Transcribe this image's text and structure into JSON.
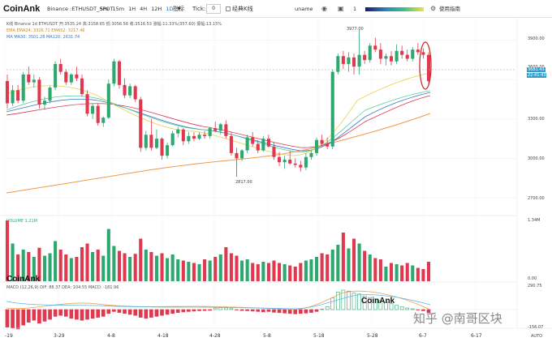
{
  "toolbar": {
    "logo": "CoinAnk",
    "symbol": "Binance :ETHUSDT_SPOT",
    "intervals": [
      "5m",
      "15m",
      "1H",
      "4H",
      "12H",
      "1D"
    ],
    "active_interval": "1D",
    "indicators_label": "指标",
    "tick_label": "Tick:",
    "tick_value": "0",
    "classic_kline_label": "经典K线",
    "username": "uname",
    "page_count": "1",
    "guide_label": "使用指南",
    "colors": {
      "active": "#2b6fd6",
      "bull": "#2da86e",
      "bear": "#e0384f"
    }
  },
  "legend": {
    "kline": "K线 Binance 1d ETHUSDT 开:3535.24 高:3158.65 低:3056.56 收:3516.53 涨幅:11.33%(357.60) 振幅:13.15%",
    "ema": "EMA   EMA24: 3326.71  EMA52: 3217.46",
    "ma": "MA   MA30: 3501.28  MA120: 2631.74",
    "volume": "VOLUME   1.21M",
    "macd": "MACD   (12,26,9)   DIF: 88.37   DEA: 104.55   MACD: -181.96"
  },
  "price_axis": [
    "3900.00",
    "3600.00",
    "3300.00",
    "3000.00",
    "2700.00"
  ],
  "last_price_tags": [
    "3681.43",
    "22:41:43"
  ],
  "price_annotations": {
    "high": "3977.00",
    "low": "2817.00"
  },
  "volume_axis": [
    "1.34M",
    "0.00"
  ],
  "macd_axis": [
    "290.75",
    "-156.07",
    "AUTO"
  ],
  "date_axis": [
    "-19",
    "3-29",
    "4-8",
    "4-18",
    "4-28",
    "5-8",
    "5-18",
    "5-28",
    "6-7",
    "6-17"
  ],
  "watermark_main": "CoinAnk",
  "watermark_macd": "CoinAnk",
  "zhihu_watermark": "知乎 @南哥区块",
  "chart_data": {
    "type": "candlestick",
    "symbol": "ETHUSDT",
    "interval": "1D",
    "ylim": [
      2600,
      4060
    ],
    "candles": [
      [
        3590,
        3640,
        3380,
        3420
      ],
      [
        3420,
        3560,
        3400,
        3520
      ],
      [
        3520,
        3560,
        3420,
        3440
      ],
      [
        3440,
        3660,
        3420,
        3640
      ],
      [
        3640,
        3700,
        3560,
        3580
      ],
      [
        3580,
        3640,
        3540,
        3600
      ],
      [
        3600,
        3620,
        3380,
        3410
      ],
      [
        3410,
        3470,
        3370,
        3440
      ],
      [
        3440,
        3550,
        3420,
        3540
      ],
      [
        3540,
        3740,
        3520,
        3720
      ],
      [
        3720,
        3760,
        3640,
        3660
      ],
      [
        3660,
        3680,
        3560,
        3580
      ],
      [
        3580,
        3650,
        3560,
        3640
      ],
      [
        3640,
        3700,
        3590,
        3610
      ],
      [
        3610,
        3640,
        3470,
        3490
      ],
      [
        3490,
        3520,
        3320,
        3340
      ],
      [
        3340,
        3420,
        3300,
        3400
      ],
      [
        3400,
        3420,
        3250,
        3270
      ],
      [
        3270,
        3320,
        3240,
        3310
      ],
      [
        3310,
        3600,
        3300,
        3570
      ],
      [
        3570,
        3760,
        3550,
        3740
      ],
      [
        3740,
        3750,
        3530,
        3560
      ],
      [
        3560,
        3610,
        3460,
        3480
      ],
      [
        3480,
        3570,
        3460,
        3550
      ],
      [
        3550,
        3560,
        3430,
        3450
      ],
      [
        3450,
        3470,
        3050,
        3080
      ],
      [
        3080,
        3210,
        3060,
        3180
      ],
      [
        3180,
        3300,
        3060,
        3080
      ],
      [
        3080,
        3220,
        3070,
        3150
      ],
      [
        3150,
        3160,
        2990,
        3020
      ],
      [
        3020,
        3120,
        3000,
        3100
      ],
      [
        3100,
        3210,
        3090,
        3190
      ],
      [
        3190,
        3240,
        3160,
        3220
      ],
      [
        3220,
        3230,
        3100,
        3130
      ],
      [
        3130,
        3200,
        3110,
        3170
      ],
      [
        3170,
        3200,
        3130,
        3150
      ],
      [
        3150,
        3200,
        3140,
        3180
      ],
      [
        3180,
        3210,
        3150,
        3170
      ],
      [
        3170,
        3240,
        3150,
        3230
      ],
      [
        3230,
        3280,
        3200,
        3210
      ],
      [
        3210,
        3270,
        3180,
        3260
      ],
      [
        3260,
        3290,
        3150,
        3170
      ],
      [
        3170,
        3200,
        3020,
        3040
      ],
      [
        3040,
        3080,
        2860,
        3000
      ],
      [
        3000,
        3070,
        2980,
        3060
      ],
      [
        3060,
        3180,
        3040,
        3160
      ],
      [
        3160,
        3200,
        3090,
        3110
      ],
      [
        3110,
        3140,
        3040,
        3060
      ],
      [
        3060,
        3170,
        3050,
        3150
      ],
      [
        3150,
        3180,
        3080,
        3090
      ],
      [
        3090,
        3120,
        2990,
        3010
      ],
      [
        3010,
        3050,
        2940,
        2970
      ],
      [
        2970,
        3020,
        2920,
        2990
      ],
      [
        2990,
        3060,
        2950,
        2960
      ],
      [
        2960,
        3000,
        2930,
        2950
      ],
      [
        2950,
        2980,
        2900,
        2930
      ],
      [
        2930,
        3040,
        2910,
        3010
      ],
      [
        3010,
        3060,
        2990,
        3040
      ],
      [
        3040,
        3160,
        3020,
        3140
      ],
      [
        3140,
        3180,
        3090,
        3110
      ],
      [
        3110,
        3160,
        3070,
        3090
      ],
      [
        3090,
        3680,
        3070,
        3660
      ],
      [
        3660,
        3800,
        3640,
        3780
      ],
      [
        3780,
        3820,
        3680,
        3720
      ],
      [
        3720,
        3810,
        3660,
        3770
      ],
      [
        3770,
        3800,
        3640,
        3700
      ],
      [
        3700,
        3980,
        3640,
        3790
      ],
      [
        3790,
        3820,
        3720,
        3750
      ],
      [
        3750,
        3880,
        3730,
        3860
      ],
      [
        3860,
        3920,
        3810,
        3830
      ],
      [
        3830,
        3880,
        3720,
        3760
      ],
      [
        3760,
        3800,
        3710,
        3780
      ],
      [
        3780,
        3820,
        3710,
        3740
      ],
      [
        3740,
        3870,
        3720,
        3820
      ],
      [
        3820,
        3860,
        3760,
        3790
      ],
      [
        3790,
        3830,
        3740,
        3760
      ],
      [
        3760,
        3850,
        3740,
        3830
      ],
      [
        3830,
        3880,
        3790,
        3810
      ],
      [
        3810,
        3840,
        3760,
        3790
      ],
      [
        3790,
        3810,
        3560,
        3590
      ]
    ],
    "volume_max_label": "1.34M",
    "volume": [
      1.0,
      0.62,
      0.44,
      0.52,
      0.48,
      0.4,
      0.55,
      0.42,
      0.46,
      0.66,
      0.52,
      0.44,
      0.38,
      0.4,
      0.56,
      0.62,
      0.48,
      0.52,
      0.42,
      0.86,
      0.58,
      0.5,
      0.46,
      0.4,
      0.45,
      0.7,
      0.52,
      0.48,
      0.42,
      0.46,
      0.38,
      0.44,
      0.36,
      0.34,
      0.32,
      0.3,
      0.28,
      0.36,
      0.34,
      0.4,
      0.44,
      0.56,
      0.46,
      0.42,
      0.34,
      0.36,
      0.3,
      0.28,
      0.32,
      0.3,
      0.34,
      0.3,
      0.28,
      0.26,
      0.24,
      0.3,
      0.34,
      0.36,
      0.4,
      0.46,
      0.44,
      0.52,
      0.6,
      0.8,
      0.54,
      0.7,
      0.62,
      0.5,
      0.44,
      0.38,
      0.36,
      0.24,
      0.3,
      0.28,
      0.26,
      0.3,
      0.26,
      0.22,
      0.2,
      0.32
    ],
    "macd": [
      -0.9,
      -0.95,
      -1.0,
      -0.8,
      -0.65,
      -0.55,
      -0.7,
      -0.6,
      -0.5,
      -0.35,
      -0.3,
      -0.35,
      -0.45,
      -0.5,
      -0.55,
      -0.5,
      -0.45,
      -0.4,
      -0.35,
      -0.2,
      -0.1,
      -0.15,
      -0.2,
      -0.25,
      -0.3,
      -0.4,
      -0.45,
      -0.4,
      -0.35,
      -0.3,
      -0.25,
      -0.2,
      -0.15,
      -0.12,
      -0.1,
      -0.08,
      -0.06,
      -0.05,
      -0.04,
      0.08,
      0.1,
      0.09,
      0.05,
      -0.02,
      -0.05,
      -0.06,
      -0.08,
      -0.1,
      -0.12,
      -0.1,
      -0.14,
      -0.16,
      -0.18,
      -0.2,
      -0.22,
      -0.2,
      -0.18,
      -0.15,
      -0.1,
      0.02,
      0.15,
      0.6,
      0.9,
      1.0,
      0.95,
      0.85,
      0.8,
      0.7,
      0.62,
      0.55,
      0.45,
      0.38,
      0.3,
      0.22,
      0.15,
      0.08,
      0.04,
      -0.02,
      -0.06,
      -0.16
    ]
  }
}
